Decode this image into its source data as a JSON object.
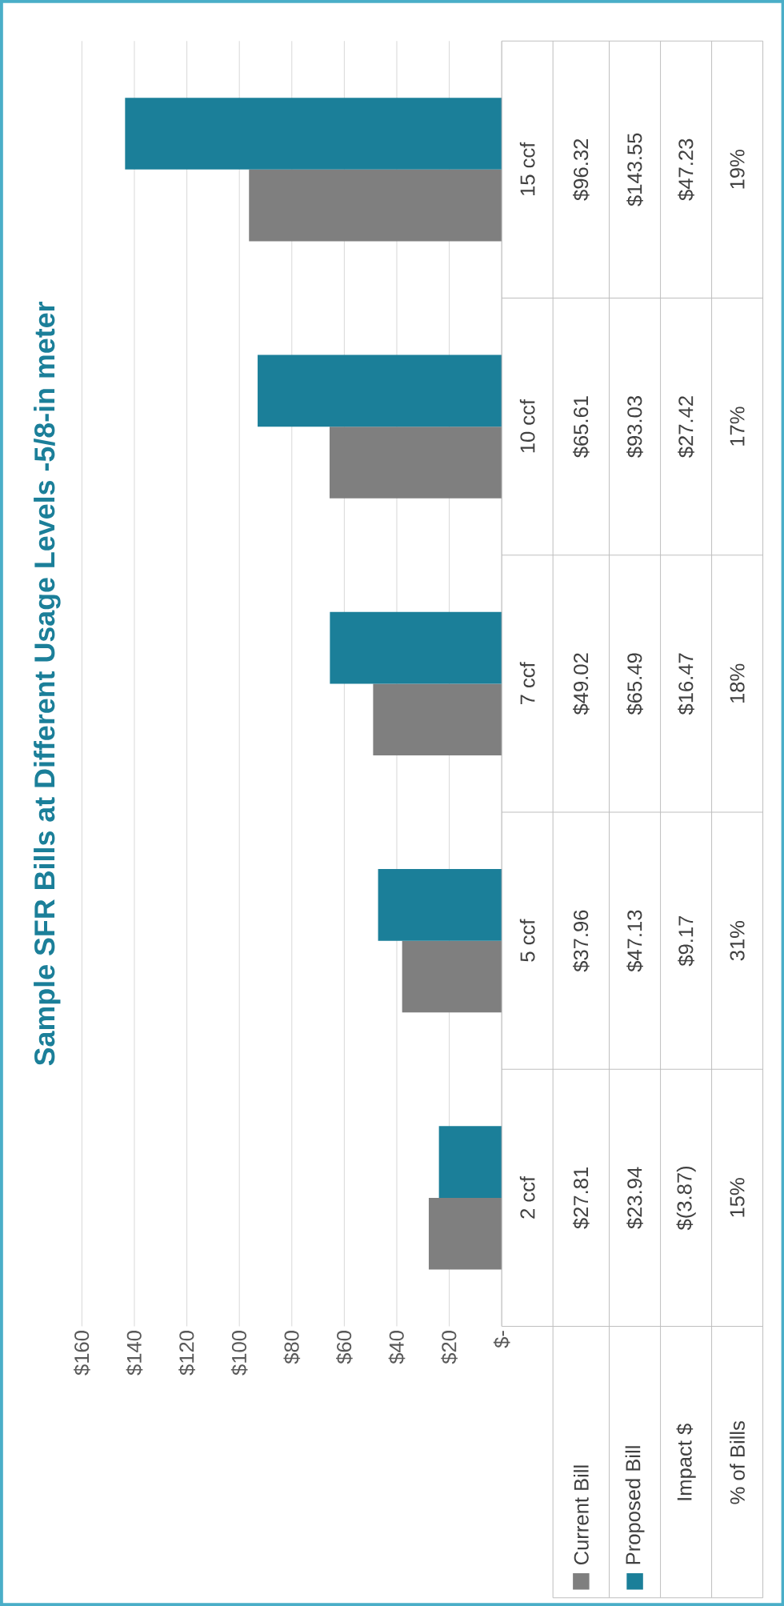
{
  "chart_data": {
    "type": "bar",
    "orientation": "horizontal",
    "title": "Sample SFR Bills at Different Usage Levels -5/8-in meter",
    "categories": [
      "15 ccf",
      "10 ccf",
      "7 ccf",
      "5 ccf",
      "2 ccf"
    ],
    "series": [
      {
        "name": "Current Bill",
        "color": "#7f7f7f",
        "values": [
          96.32,
          65.61,
          49.02,
          37.96,
          27.81
        ],
        "value_labels": [
          "$96.32",
          "$65.61",
          "$49.02",
          "$37.96",
          "$27.81"
        ]
      },
      {
        "name": "Proposed Bill",
        "color": "#1b7f99",
        "values": [
          143.55,
          93.03,
          65.49,
          47.13,
          23.94
        ],
        "value_labels": [
          "$143.55",
          "$93.03",
          "$65.49",
          "$47.13",
          "$23.94"
        ]
      }
    ],
    "xlim": [
      160,
      0
    ],
    "xticks": [
      {
        "value": 160,
        "label": "$160"
      },
      {
        "value": 140,
        "label": "$140"
      },
      {
        "value": 120,
        "label": "$120"
      },
      {
        "value": 100,
        "label": "$100"
      },
      {
        "value": 80,
        "label": "$80"
      },
      {
        "value": 60,
        "label": "$60"
      },
      {
        "value": 40,
        "label": "$40"
      },
      {
        "value": 20,
        "label": "$20"
      },
      {
        "value": 0,
        "label": "$-"
      }
    ],
    "grid": "x",
    "legend": "bottom",
    "annotations": [
      "Impact $",
      "$47.23",
      "$27.42",
      "$16.47",
      "$9.17",
      "$(3.87)",
      "% of Bills",
      "19%",
      "17%",
      "18%",
      "31%",
      "15%"
    ]
  }
}
